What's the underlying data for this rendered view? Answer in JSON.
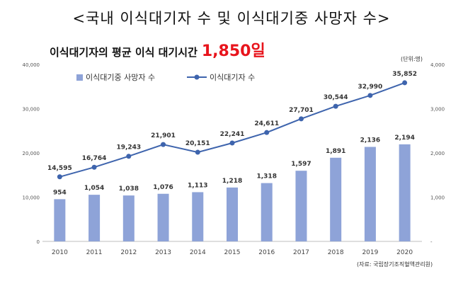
{
  "title": "<국내 이식대기자 수 및 이식대기중 사망자 수>",
  "subtitle": "이식대기자의 평균 이식 대기시간",
  "subtitle_highlight": "1,850일",
  "unit": "(단위:명)",
  "source": "(자료: 국립장기조직혈액관리원)",
  "chart_data": {
    "type": "bar+line",
    "categories": [
      "2010",
      "2011",
      "2012",
      "2013",
      "2014",
      "2015",
      "2016",
      "2017",
      "2018",
      "2019",
      "2020"
    ],
    "series": [
      {
        "name": "이식대기중 사망자 수",
        "type": "bar",
        "axis": "right",
        "values": [
          954,
          1054,
          1038,
          1076,
          1113,
          1218,
          1318,
          1597,
          1891,
          2136,
          2194
        ],
        "labels": [
          "954",
          "1,054",
          "1,038",
          "1,076",
          "1,113",
          "1,218",
          "1,318",
          "1,597",
          "1,891",
          "2,136",
          "2,194"
        ]
      },
      {
        "name": "이식대기자 수",
        "type": "line",
        "axis": "left",
        "values": [
          14595,
          16764,
          19243,
          21901,
          20151,
          22241,
          24611,
          27701,
          30544,
          32990,
          35852
        ],
        "labels": [
          "14,595",
          "16,764",
          "19,243",
          "21,901",
          "20,151",
          "22,241",
          "24,611",
          "27,701",
          "30,544",
          "32,990",
          "35,852"
        ]
      }
    ],
    "left_axis": {
      "ylim": [
        0,
        40000
      ],
      "ticks": [
        "0",
        "10,000",
        "20,000",
        "30,000",
        "40,000"
      ]
    },
    "right_axis": {
      "ylim": [
        0,
        4000
      ],
      "ticks": [
        "-",
        "1,000",
        "2,000",
        "3,000",
        "4,000"
      ]
    },
    "colors": {
      "bar": "#8ea3d8",
      "line": "#3e64ad"
    },
    "legend_position": "top-left",
    "grid": false
  }
}
